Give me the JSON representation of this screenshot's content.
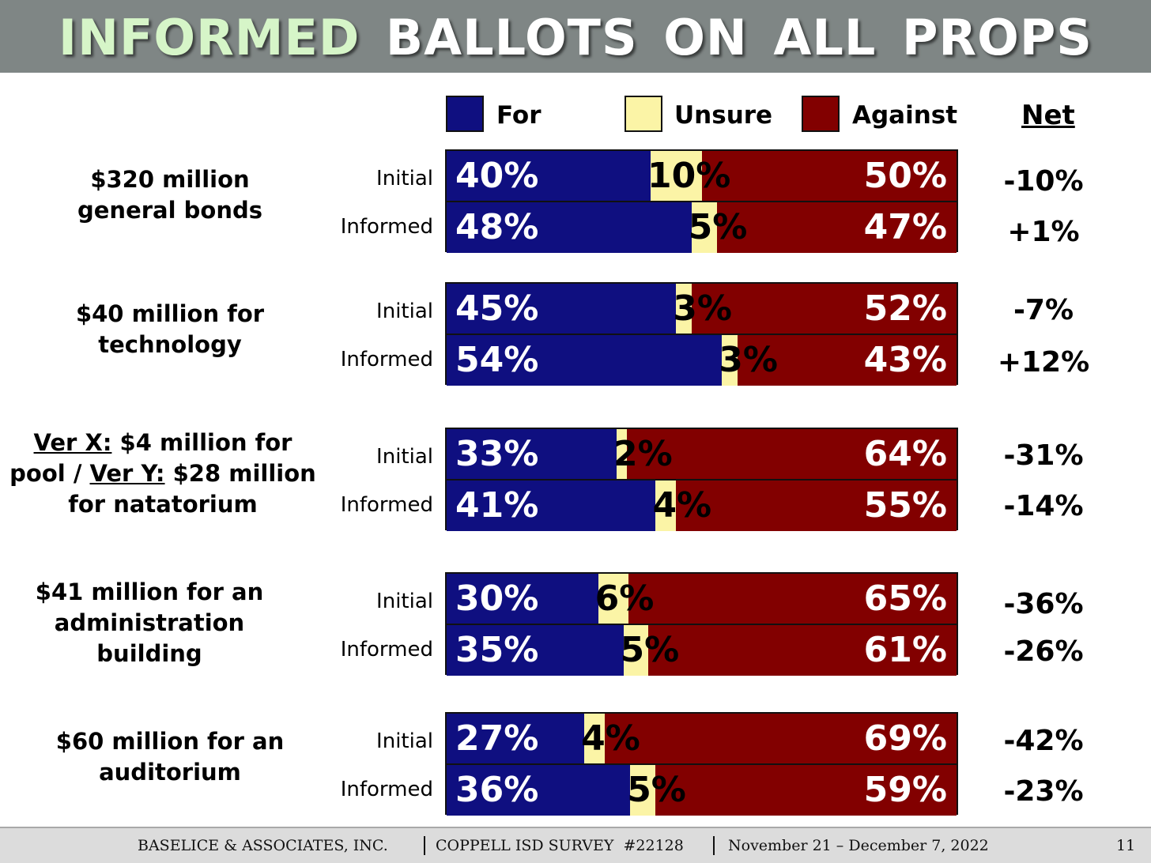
{
  "title": {
    "word1": "INFORMED",
    "rest": "BALLOTS ON ALL PROPS"
  },
  "legend": {
    "for": {
      "label": "For",
      "color": "#0f0f80"
    },
    "unsure": {
      "label": "Unsure",
      "color": "#fbf4a6"
    },
    "against": {
      "label": "Against",
      "color": "#820000"
    },
    "net": "Net"
  },
  "props": {
    "p1": {
      "line1": "$320 million",
      "line2": "general bonds"
    },
    "p2": {
      "line1": "$40 million for",
      "line2": "technology"
    },
    "p3": {
      "verx": "Ver X:",
      "line1_rest": " $4 million for",
      "line2_a": "pool / ",
      "very": "Ver Y:",
      "line2_rest": " $28 million",
      "line3": "for natatorium"
    },
    "p4": {
      "line1": "$41 million for an",
      "line2": "administration",
      "line3": "building"
    },
    "p5": {
      "line1": "$60 million for an",
      "line2": "auditorium"
    }
  },
  "row_labels": {
    "initial": "Initial",
    "informed": "Informed"
  },
  "chart_data": {
    "type": "bar",
    "stacked": true,
    "orientation": "horizontal",
    "title": "INFORMED BALLOTS ON ALL PROPS",
    "series_names": [
      "For",
      "Unsure",
      "Against"
    ],
    "groups": [
      {
        "rows": [
          {
            "label": "Initial",
            "for": 40,
            "unsure": 10,
            "against": 50,
            "for_text": "40%",
            "unsure_text": "10%",
            "against_text": "50%",
            "net": "-10%"
          },
          {
            "label": "Informed",
            "for": 48,
            "unsure": 5,
            "against": 47,
            "for_text": "48%",
            "unsure_text": "5%",
            "against_text": "47%",
            "net": "+1%"
          }
        ]
      },
      {
        "rows": [
          {
            "label": "Initial",
            "for": 45,
            "unsure": 3,
            "against": 52,
            "for_text": "45%",
            "unsure_text": "3%",
            "against_text": "52%",
            "net": "-7%"
          },
          {
            "label": "Informed",
            "for": 54,
            "unsure": 3,
            "against": 43,
            "for_text": "54%",
            "unsure_text": "3%",
            "against_text": "43%",
            "net": "+12%"
          }
        ]
      },
      {
        "rows": [
          {
            "label": "Initial",
            "for": 33,
            "unsure": 2,
            "against": 64,
            "for_text": "33%",
            "unsure_text": "2%",
            "against_text": "64%",
            "net": "-31%"
          },
          {
            "label": "Informed",
            "for": 41,
            "unsure": 4,
            "against": 55,
            "for_text": "41%",
            "unsure_text": "4%",
            "against_text": "55%",
            "net": "-14%"
          }
        ]
      },
      {
        "rows": [
          {
            "label": "Initial",
            "for": 30,
            "unsure": 6,
            "against": 65,
            "for_text": "30%",
            "unsure_text": "6%",
            "against_text": "65%",
            "net": "-36%"
          },
          {
            "label": "Informed",
            "for": 35,
            "unsure": 5,
            "against": 61,
            "for_text": "35%",
            "unsure_text": "5%",
            "against_text": "61%",
            "net": "-26%"
          }
        ]
      },
      {
        "rows": [
          {
            "label": "Initial",
            "for": 27,
            "unsure": 4,
            "against": 69,
            "for_text": "27%",
            "unsure_text": "4%",
            "against_text": "69%",
            "net": "-42%"
          },
          {
            "label": "Informed",
            "for": 36,
            "unsure": 5,
            "against": 59,
            "for_text": "36%",
            "unsure_text": "5%",
            "against_text": "59%",
            "net": "-23%"
          }
        ]
      }
    ]
  },
  "footer": {
    "company": "BASELICE & ASSOCIATES, INC.",
    "survey": "COPPELL ISD SURVEY  #22128",
    "dates": "November 21 – December 7, 2022",
    "page": "11"
  }
}
